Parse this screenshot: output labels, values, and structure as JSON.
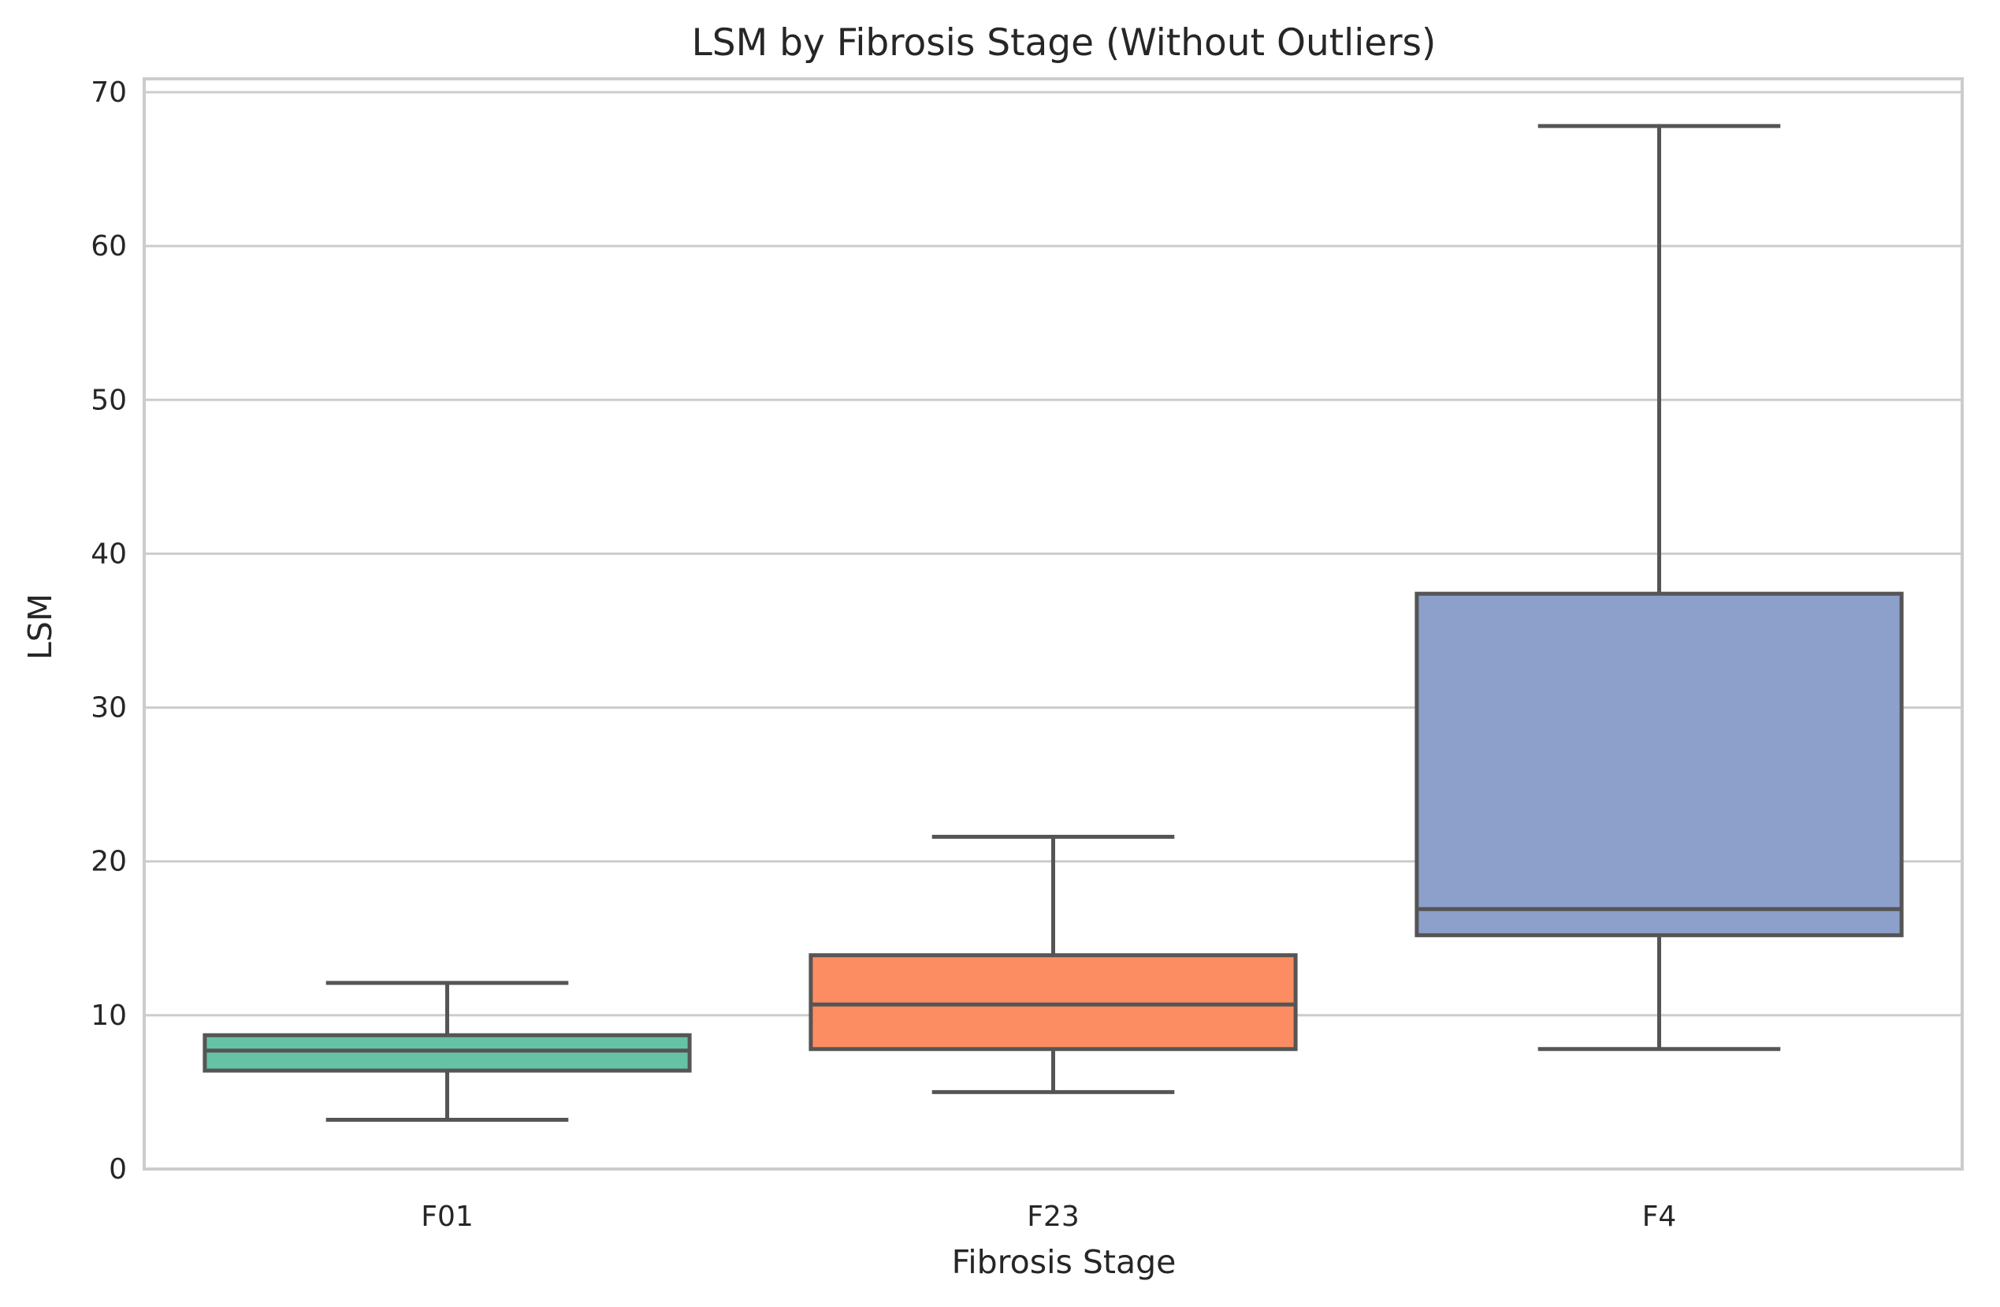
{
  "chart_data": {
    "type": "box",
    "title": "LSM by Fibrosis Stage (Without Outliers)",
    "xlabel": "Fibrosis Stage",
    "ylabel": "LSM",
    "ylim": [
      0,
      71
    ],
    "yticks": [
      0,
      10,
      20,
      30,
      40,
      50,
      60,
      70
    ],
    "grid": "horizontal",
    "categories": [
      "F01",
      "F23",
      "F4"
    ],
    "boxes": [
      {
        "category": "F01",
        "whisker_low": 3.2,
        "q1": 6.4,
        "median": 7.7,
        "q3": 8.7,
        "whisker_high": 12.1,
        "color": "#66c2a5"
      },
      {
        "category": "F23",
        "whisker_low": 5.0,
        "q1": 7.8,
        "median": 10.7,
        "q3": 13.9,
        "whisker_high": 21.6,
        "color": "#fc8d62"
      },
      {
        "category": "F4",
        "whisker_low": 7.8,
        "q1": 15.2,
        "median": 16.9,
        "q3": 37.4,
        "whisker_high": 67.8,
        "color": "#8da0cb"
      }
    ],
    "box_line_color": "#555555",
    "grid_color": "#cccccc"
  }
}
